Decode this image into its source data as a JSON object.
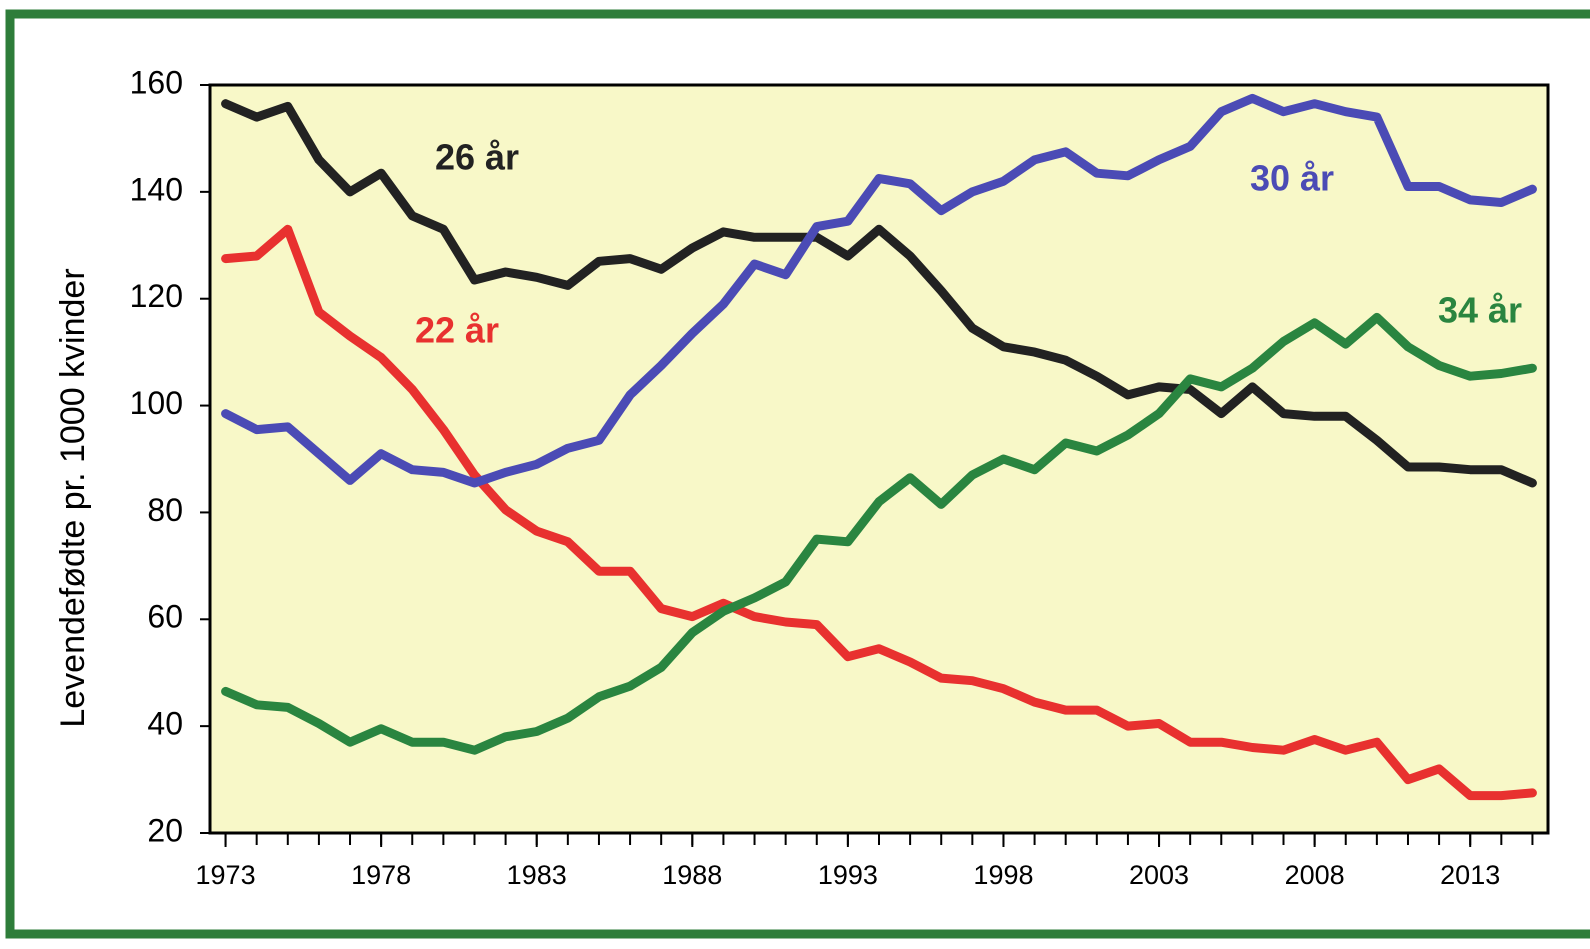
{
  "chart_data": {
    "type": "line",
    "ylabel": "Levendefødte pr. 1000 kvinder",
    "x": [
      1973,
      1974,
      1975,
      1976,
      1977,
      1978,
      1979,
      1980,
      1981,
      1982,
      1983,
      1984,
      1985,
      1986,
      1987,
      1988,
      1989,
      1990,
      1991,
      1992,
      1993,
      1994,
      1995,
      1996,
      1997,
      1998,
      1999,
      2000,
      2001,
      2002,
      2003,
      2004,
      2005,
      2006,
      2007,
      2008,
      2009,
      2010,
      2011,
      2012,
      2013,
      2014,
      2015
    ],
    "series": [
      {
        "name": "26 år",
        "color": "#222222",
        "values": [
          156.5,
          154,
          156,
          146,
          140,
          143.5,
          135.5,
          133,
          123.5,
          125,
          124,
          122.5,
          127,
          127.5,
          125.5,
          129.5,
          132.5,
          131.5,
          131.5,
          131.5,
          128,
          133,
          128,
          121.5,
          114.5,
          111,
          110,
          108.5,
          105.5,
          102,
          103.5,
          103,
          98.5,
          103.5,
          98.5,
          98,
          98,
          93.5,
          88.5,
          88.5,
          88,
          88,
          85.5
        ]
      },
      {
        "name": "22 år",
        "color": "#e8312f",
        "values": [
          127.5,
          128,
          133,
          117.5,
          113,
          109,
          103,
          95.5,
          87,
          80.5,
          76.5,
          74.5,
          69,
          69,
          62,
          60.5,
          63,
          60.5,
          59.5,
          59,
          53,
          54.5,
          52,
          49,
          48.5,
          47,
          44.5,
          43,
          43,
          40,
          40.5,
          37,
          37,
          36,
          35.5,
          37.5,
          35.5,
          37,
          30,
          32,
          27,
          27,
          27.5
        ]
      },
      {
        "name": "30 år",
        "color": "#4b4bb5",
        "values": [
          98.5,
          95.5,
          96,
          91,
          86,
          91,
          88,
          87.5,
          85.5,
          87.5,
          89,
          92,
          93.5,
          102,
          107.5,
          113.5,
          119,
          126.5,
          124.5,
          133.5,
          134.5,
          142.5,
          141.5,
          136.5,
          140,
          142,
          146,
          147.5,
          143.5,
          143,
          146,
          148.5,
          155,
          157.5,
          155,
          156.5,
          155,
          154,
          141,
          141,
          138.5,
          138,
          140.5
        ]
      },
      {
        "name": "34 år",
        "color": "#2a8540",
        "values": [
          46.5,
          44,
          43.5,
          40.5,
          37,
          39.5,
          37,
          37,
          35.5,
          38,
          39,
          41.5,
          45.5,
          47.5,
          51,
          57.5,
          61.5,
          64,
          67,
          75,
          74.5,
          82,
          86.5,
          81.5,
          87,
          90,
          88,
          93,
          91.5,
          94.5,
          98.5,
          105,
          103.5,
          107,
          112,
          115.5,
          111.5,
          116.5,
          111,
          107.5,
          105.5,
          106,
          107
        ]
      }
    ],
    "xlim": [
      1972.5,
      2015.5
    ],
    "xticks": [
      1973,
      1978,
      1983,
      1988,
      1993,
      1998,
      2003,
      2008,
      2013
    ],
    "xminorticks": [
      1973,
      1974,
      1975,
      1976,
      1977,
      1978,
      1979,
      1980,
      1981,
      1982,
      1983,
      1984,
      1985,
      1986,
      1987,
      1988,
      1989,
      1990,
      1991,
      1992,
      1993,
      1994,
      1995,
      1996,
      1997,
      1998,
      1999,
      2000,
      2001,
      2002,
      2003,
      2004,
      2005,
      2006,
      2007,
      2008,
      2009,
      2010,
      2011,
      2012,
      2013,
      2014,
      2015
    ],
    "ylim": [
      20,
      160
    ],
    "yticks": [
      20,
      40,
      60,
      80,
      100,
      120,
      140,
      160
    ],
    "background": "#f8f8c8",
    "frame_color": "#2e7d3a"
  }
}
